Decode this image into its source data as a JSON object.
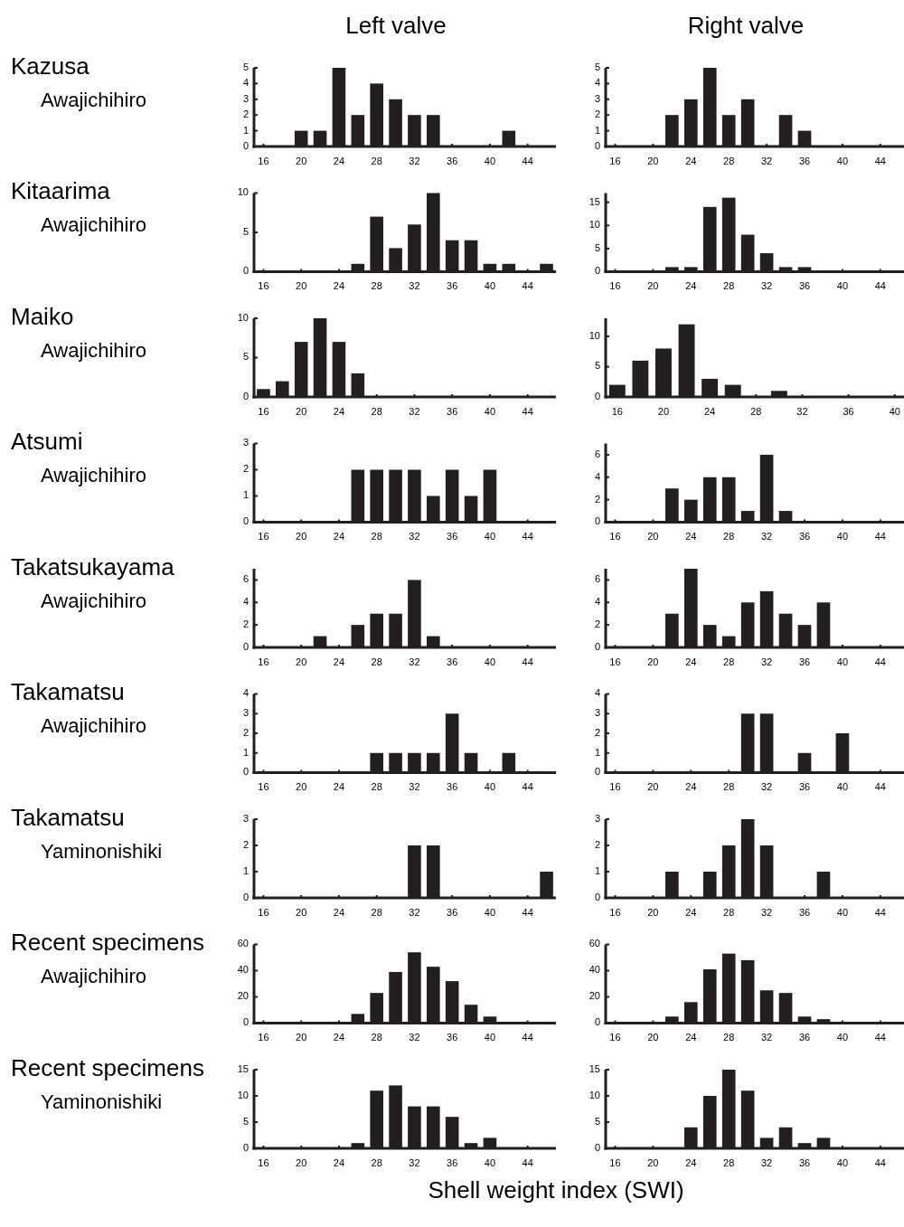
{
  "chart_data": [
    {
      "type": "bar",
      "title": "Left valve",
      "annotations": [
        "Kazusa",
        "Awajichihiro"
      ],
      "x": [
        20,
        22,
        24,
        26,
        28,
        30,
        32,
        34,
        42
      ],
      "values": [
        1,
        1,
        5,
        2,
        4,
        3,
        2,
        2,
        1
      ],
      "color": "#231f20",
      "xlim": [
        15,
        47
      ],
      "xticks": [
        16,
        20,
        24,
        28,
        32,
        36,
        40,
        44
      ],
      "ylim": [
        0,
        5
      ],
      "yticks": [
        0,
        1,
        2,
        3,
        4,
        5
      ]
    },
    {
      "type": "bar",
      "title": "Right valve",
      "x": [
        22,
        24,
        26,
        28,
        30,
        34,
        36
      ],
      "values": [
        2,
        3,
        5,
        2,
        3,
        2,
        1
      ],
      "color": "#231f20",
      "xlim": [
        15,
        46.5
      ],
      "xticks": [
        16,
        20,
        24,
        28,
        32,
        36,
        40,
        44
      ],
      "ylim": [
        0,
        5
      ],
      "yticks": [
        0,
        1,
        2,
        3,
        4,
        5
      ]
    },
    {
      "type": "bar",
      "annotations": [
        "Kitaarima",
        "Awajichihiro"
      ],
      "x": [
        26,
        28,
        30,
        32,
        34,
        36,
        38,
        40,
        42,
        46
      ],
      "values": [
        1,
        7,
        3,
        6,
        10,
        4,
        4,
        1,
        1,
        1
      ],
      "color": "#231f20",
      "xlim": [
        15,
        47
      ],
      "xticks": [
        16,
        20,
        24,
        28,
        32,
        36,
        40,
        44
      ],
      "ylim": [
        0,
        10
      ],
      "yticks": [
        0,
        5,
        10
      ]
    },
    {
      "type": "bar",
      "x": [
        22,
        24,
        26,
        28,
        30,
        32,
        34,
        36
      ],
      "values": [
        1,
        1,
        14,
        16,
        8,
        4,
        1,
        1
      ],
      "color": "#231f20",
      "xlim": [
        15,
        46.5
      ],
      "xticks": [
        16,
        20,
        24,
        28,
        32,
        36,
        40,
        44
      ],
      "ylim": [
        0,
        17
      ],
      "yticks": [
        0,
        5,
        10,
        15
      ]
    },
    {
      "type": "bar",
      "annotations": [
        "Maiko",
        "Awajichihiro"
      ],
      "x": [
        16,
        18,
        20,
        22,
        24,
        26
      ],
      "values": [
        1,
        2,
        7,
        10,
        7,
        3
      ],
      "color": "#231f20",
      "xlim": [
        15,
        47
      ],
      "xticks": [
        16,
        20,
        24,
        28,
        32,
        36,
        40,
        44
      ],
      "ylim": [
        0,
        10
      ],
      "yticks": [
        0,
        5,
        10
      ]
    },
    {
      "type": "bar",
      "x": [
        16,
        18,
        20,
        22,
        24,
        26,
        30
      ],
      "values": [
        2,
        6,
        8,
        12,
        3,
        2,
        1
      ],
      "color": "#231f20",
      "xlim": [
        15,
        40.8
      ],
      "xticks": [
        16,
        20,
        24,
        28,
        32,
        36,
        40
      ],
      "ylim": [
        0,
        13
      ],
      "yticks": [
        0,
        5,
        10
      ]
    },
    {
      "type": "bar",
      "annotations": [
        "Atsumi",
        "Awajichihiro"
      ],
      "x": [
        26,
        28,
        30,
        32,
        34,
        36,
        38,
        40
      ],
      "values": [
        2,
        2,
        2,
        2,
        1,
        2,
        1,
        2
      ],
      "color": "#231f20",
      "xlim": [
        15,
        47
      ],
      "xticks": [
        16,
        20,
        24,
        28,
        32,
        36,
        40,
        44
      ],
      "ylim": [
        0,
        3
      ],
      "yticks": [
        0,
        1,
        2,
        3
      ]
    },
    {
      "type": "bar",
      "x": [
        22,
        24,
        26,
        28,
        30,
        32,
        34
      ],
      "values": [
        3,
        2,
        4,
        4,
        1,
        6,
        1
      ],
      "color": "#231f20",
      "xlim": [
        15,
        46.5
      ],
      "xticks": [
        16,
        20,
        24,
        28,
        32,
        36,
        40,
        44
      ],
      "ylim": [
        0,
        7
      ],
      "yticks": [
        0,
        2,
        4,
        6
      ]
    },
    {
      "type": "bar",
      "annotations": [
        "Takatsukayama",
        "Awajichihiro"
      ],
      "x": [
        22,
        26,
        28,
        30,
        32,
        34
      ],
      "values": [
        1,
        2,
        3,
        3,
        6,
        1
      ],
      "color": "#231f20",
      "xlim": [
        15,
        47
      ],
      "xticks": [
        16,
        20,
        24,
        28,
        32,
        36,
        40,
        44
      ],
      "ylim": [
        0,
        7
      ],
      "yticks": [
        0,
        2,
        4,
        6
      ]
    },
    {
      "type": "bar",
      "x": [
        22,
        24,
        26,
        28,
        30,
        32,
        34,
        36,
        38
      ],
      "values": [
        3,
        7,
        2,
        1,
        4,
        5,
        3,
        2,
        4
      ],
      "color": "#231f20",
      "xlim": [
        15,
        46.5
      ],
      "xticks": [
        16,
        20,
        24,
        28,
        32,
        36,
        40,
        44
      ],
      "ylim": [
        0,
        7
      ],
      "yticks": [
        0,
        2,
        4,
        6
      ]
    },
    {
      "type": "bar",
      "annotations": [
        "Takamatsu",
        "Awajichihiro"
      ],
      "x": [
        28,
        30,
        32,
        34,
        36,
        38,
        42
      ],
      "values": [
        1,
        1,
        1,
        1,
        3,
        1,
        1
      ],
      "color": "#231f20",
      "xlim": [
        15,
        47
      ],
      "xticks": [
        16,
        20,
        24,
        28,
        32,
        36,
        40,
        44
      ],
      "ylim": [
        0,
        4
      ],
      "yticks": [
        0,
        1,
        2,
        3,
        4
      ]
    },
    {
      "type": "bar",
      "x": [
        30,
        32,
        36,
        40
      ],
      "values": [
        3,
        3,
        1,
        2
      ],
      "color": "#231f20",
      "xlim": [
        15,
        46.5
      ],
      "xticks": [
        16,
        20,
        24,
        28,
        32,
        36,
        40,
        44
      ],
      "ylim": [
        0,
        4
      ],
      "yticks": [
        0,
        1,
        2,
        3,
        4
      ]
    },
    {
      "type": "bar",
      "annotations": [
        "Takamatsu",
        "Yaminonishiki"
      ],
      "x": [
        32,
        34,
        46
      ],
      "values": [
        2,
        2,
        1
      ],
      "color": "#231f20",
      "xlim": [
        15,
        47
      ],
      "xticks": [
        16,
        20,
        24,
        28,
        32,
        36,
        40,
        44
      ],
      "ylim": [
        0,
        3
      ],
      "yticks": [
        0,
        1,
        2,
        3
      ]
    },
    {
      "type": "bar",
      "x": [
        22,
        26,
        28,
        30,
        32,
        38
      ],
      "values": [
        1,
        1,
        2,
        3,
        2,
        1
      ],
      "color": "#231f20",
      "xlim": [
        15,
        46.5
      ],
      "xticks": [
        16,
        20,
        24,
        28,
        32,
        36,
        40,
        44
      ],
      "ylim": [
        0,
        3
      ],
      "yticks": [
        0,
        1,
        2,
        3
      ]
    },
    {
      "type": "bar",
      "annotations": [
        "Recent specimens",
        "Awajichihiro"
      ],
      "x": [
        24,
        26,
        28,
        30,
        32,
        34,
        36,
        38,
        40,
        42,
        44
      ],
      "values": [
        1,
        7,
        23,
        39,
        54,
        43,
        32,
        14,
        5,
        1,
        1
      ],
      "color": "#231f20",
      "xlim": [
        15,
        47
      ],
      "xticks": [
        16,
        20,
        24,
        28,
        32,
        36,
        40,
        44
      ],
      "ylim": [
        0,
        60
      ],
      "yticks": [
        0,
        20,
        40,
        60
      ]
    },
    {
      "type": "bar",
      "x": [
        22,
        24,
        26,
        28,
        30,
        32,
        34,
        36,
        38,
        40,
        42
      ],
      "values": [
        5,
        16,
        41,
        53,
        48,
        25,
        23,
        5,
        3,
        1,
        1
      ],
      "color": "#231f20",
      "xlim": [
        15,
        46.5
      ],
      "xticks": [
        16,
        20,
        24,
        28,
        32,
        36,
        40,
        44
      ],
      "ylim": [
        0,
        60
      ],
      "yticks": [
        0,
        20,
        40,
        60
      ]
    },
    {
      "type": "bar",
      "annotations": [
        "Recent specimens",
        "Yaminonishiki"
      ],
      "x": [
        26,
        28,
        30,
        32,
        34,
        36,
        38,
        40
      ],
      "values": [
        1,
        11,
        12,
        8,
        8,
        6,
        1,
        2
      ],
      "color": "#231f20",
      "xlim": [
        15,
        47
      ],
      "xticks": [
        16,
        20,
        24,
        28,
        32,
        36,
        40,
        44
      ],
      "ylim": [
        0,
        15
      ],
      "yticks": [
        0,
        5,
        10,
        15
      ]
    },
    {
      "type": "bar",
      "xlabel": "Shell weight index (SWI)",
      "x": [
        24,
        26,
        28,
        30,
        32,
        34,
        36,
        38
      ],
      "values": [
        4,
        10,
        15,
        11,
        2,
        4,
        1,
        2
      ],
      "color": "#231f20",
      "xlim": [
        15,
        46.5
      ],
      "xticks": [
        16,
        20,
        24,
        28,
        32,
        36,
        40,
        44
      ],
      "ylim": [
        0,
        15
      ],
      "yticks": [
        0,
        5,
        10,
        15
      ]
    }
  ]
}
